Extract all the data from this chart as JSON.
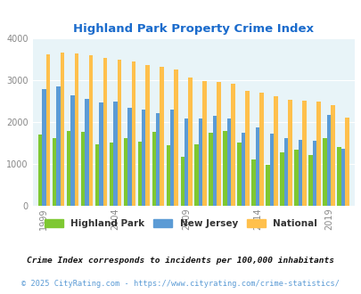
{
  "title": "Highland Park Property Crime Index",
  "title_color": "#1a6bcc",
  "years": [
    1999,
    2000,
    2001,
    2002,
    2003,
    2004,
    2005,
    2006,
    2007,
    2008,
    2009,
    2010,
    2011,
    2012,
    2013,
    2014,
    2015,
    2016,
    2017,
    2018,
    2019,
    2020
  ],
  "highland_park": [
    1700,
    1620,
    1790,
    1760,
    1460,
    1500,
    1620,
    1530,
    1760,
    1450,
    1160,
    1460,
    1750,
    1780,
    1510,
    1110,
    980,
    1270,
    1330,
    1215,
    1620,
    1400
  ],
  "new_jersey": [
    2780,
    2840,
    2640,
    2560,
    2470,
    2480,
    2340,
    2300,
    2210,
    2290,
    2090,
    2090,
    2150,
    2080,
    1750,
    1880,
    1720,
    1620,
    1570,
    1550,
    2170,
    1370
  ],
  "national": [
    3620,
    3650,
    3640,
    3600,
    3530,
    3480,
    3450,
    3360,
    3310,
    3260,
    3060,
    2980,
    2950,
    2920,
    2750,
    2710,
    2620,
    2520,
    2500,
    2480,
    2400,
    2110
  ],
  "hp_color": "#7ec832",
  "nj_color": "#5b9bd5",
  "nat_color": "#ffc04c",
  "plot_bg": "#e8f4f8",
  "ylim": [
    0,
    4000
  ],
  "yticks": [
    0,
    1000,
    2000,
    3000,
    4000
  ],
  "xtick_years": [
    1999,
    2004,
    2009,
    2014,
    2019
  ],
  "legend_labels": [
    "Highland Park",
    "New Jersey",
    "National"
  ],
  "footnote1": "Crime Index corresponds to incidents per 100,000 inhabitants",
  "footnote2": "© 2025 CityRating.com - https://www.cityrating.com/crime-statistics/",
  "footnote1_color": "#111111",
  "footnote2_color": "#5b9bd5"
}
